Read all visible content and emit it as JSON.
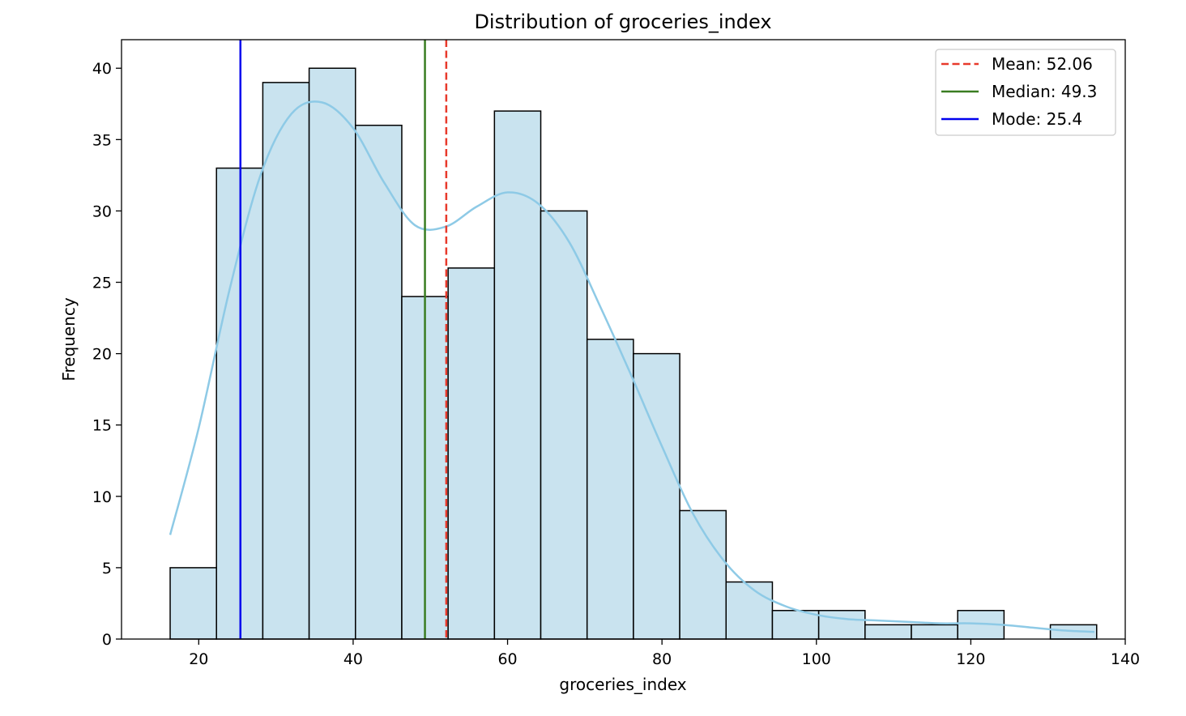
{
  "chart_data": {
    "type": "bar",
    "title": "Distribution of groceries_index",
    "xlabel": "groceries_index",
    "ylabel": "Frequency",
    "xlim": [
      10,
      140
    ],
    "ylim": [
      0,
      42
    ],
    "xticks": [
      20,
      40,
      60,
      80,
      100,
      120,
      140
    ],
    "yticks": [
      0,
      5,
      10,
      15,
      20,
      25,
      30,
      35,
      40
    ],
    "grid": false,
    "legend_position": "top-right",
    "bin_edges": [
      16.3,
      22.3,
      28.3,
      34.3,
      40.3,
      46.3,
      52.3,
      58.3,
      64.3,
      70.3,
      76.3,
      82.3,
      88.3,
      94.3,
      100.3,
      106.3,
      112.3,
      118.3,
      124.3,
      130.3,
      136.3
    ],
    "counts": [
      5,
      33,
      39,
      40,
      36,
      24,
      26,
      37,
      30,
      21,
      20,
      9,
      4,
      2,
      2,
      1,
      1,
      2,
      0,
      1
    ],
    "bar_fill": "#c9e3ef",
    "bar_edge": "#000000",
    "kde": {
      "color": "#8ecae6",
      "x": [
        16.3,
        20,
        24,
        28,
        32,
        36,
        40,
        44,
        48,
        52,
        56,
        60,
        64,
        68,
        72,
        76,
        80,
        84,
        88,
        92,
        96,
        100,
        104,
        108,
        112,
        116,
        120,
        124,
        128,
        132,
        136
      ],
      "y": [
        7.3,
        14.8,
        24.5,
        32.5,
        36.8,
        37.6,
        35.8,
        32,
        29,
        28.9,
        30.3,
        31.3,
        30.5,
        27.8,
        23.3,
        18.5,
        13.5,
        8.8,
        5.5,
        3.4,
        2.3,
        1.7,
        1.4,
        1.3,
        1.2,
        1.1,
        1.1,
        1.0,
        0.8,
        0.6,
        0.5
      ]
    },
    "lines": [
      {
        "label": "Mean: 52.06",
        "value": 52.06,
        "color": "#e8392b",
        "style": "dashed"
      },
      {
        "label": "Median: 49.3",
        "value": 49.3,
        "color": "#3a7d22",
        "style": "solid"
      },
      {
        "label": "Mode: 25.4",
        "value": 25.4,
        "color": "#0000ee",
        "style": "solid"
      }
    ]
  }
}
